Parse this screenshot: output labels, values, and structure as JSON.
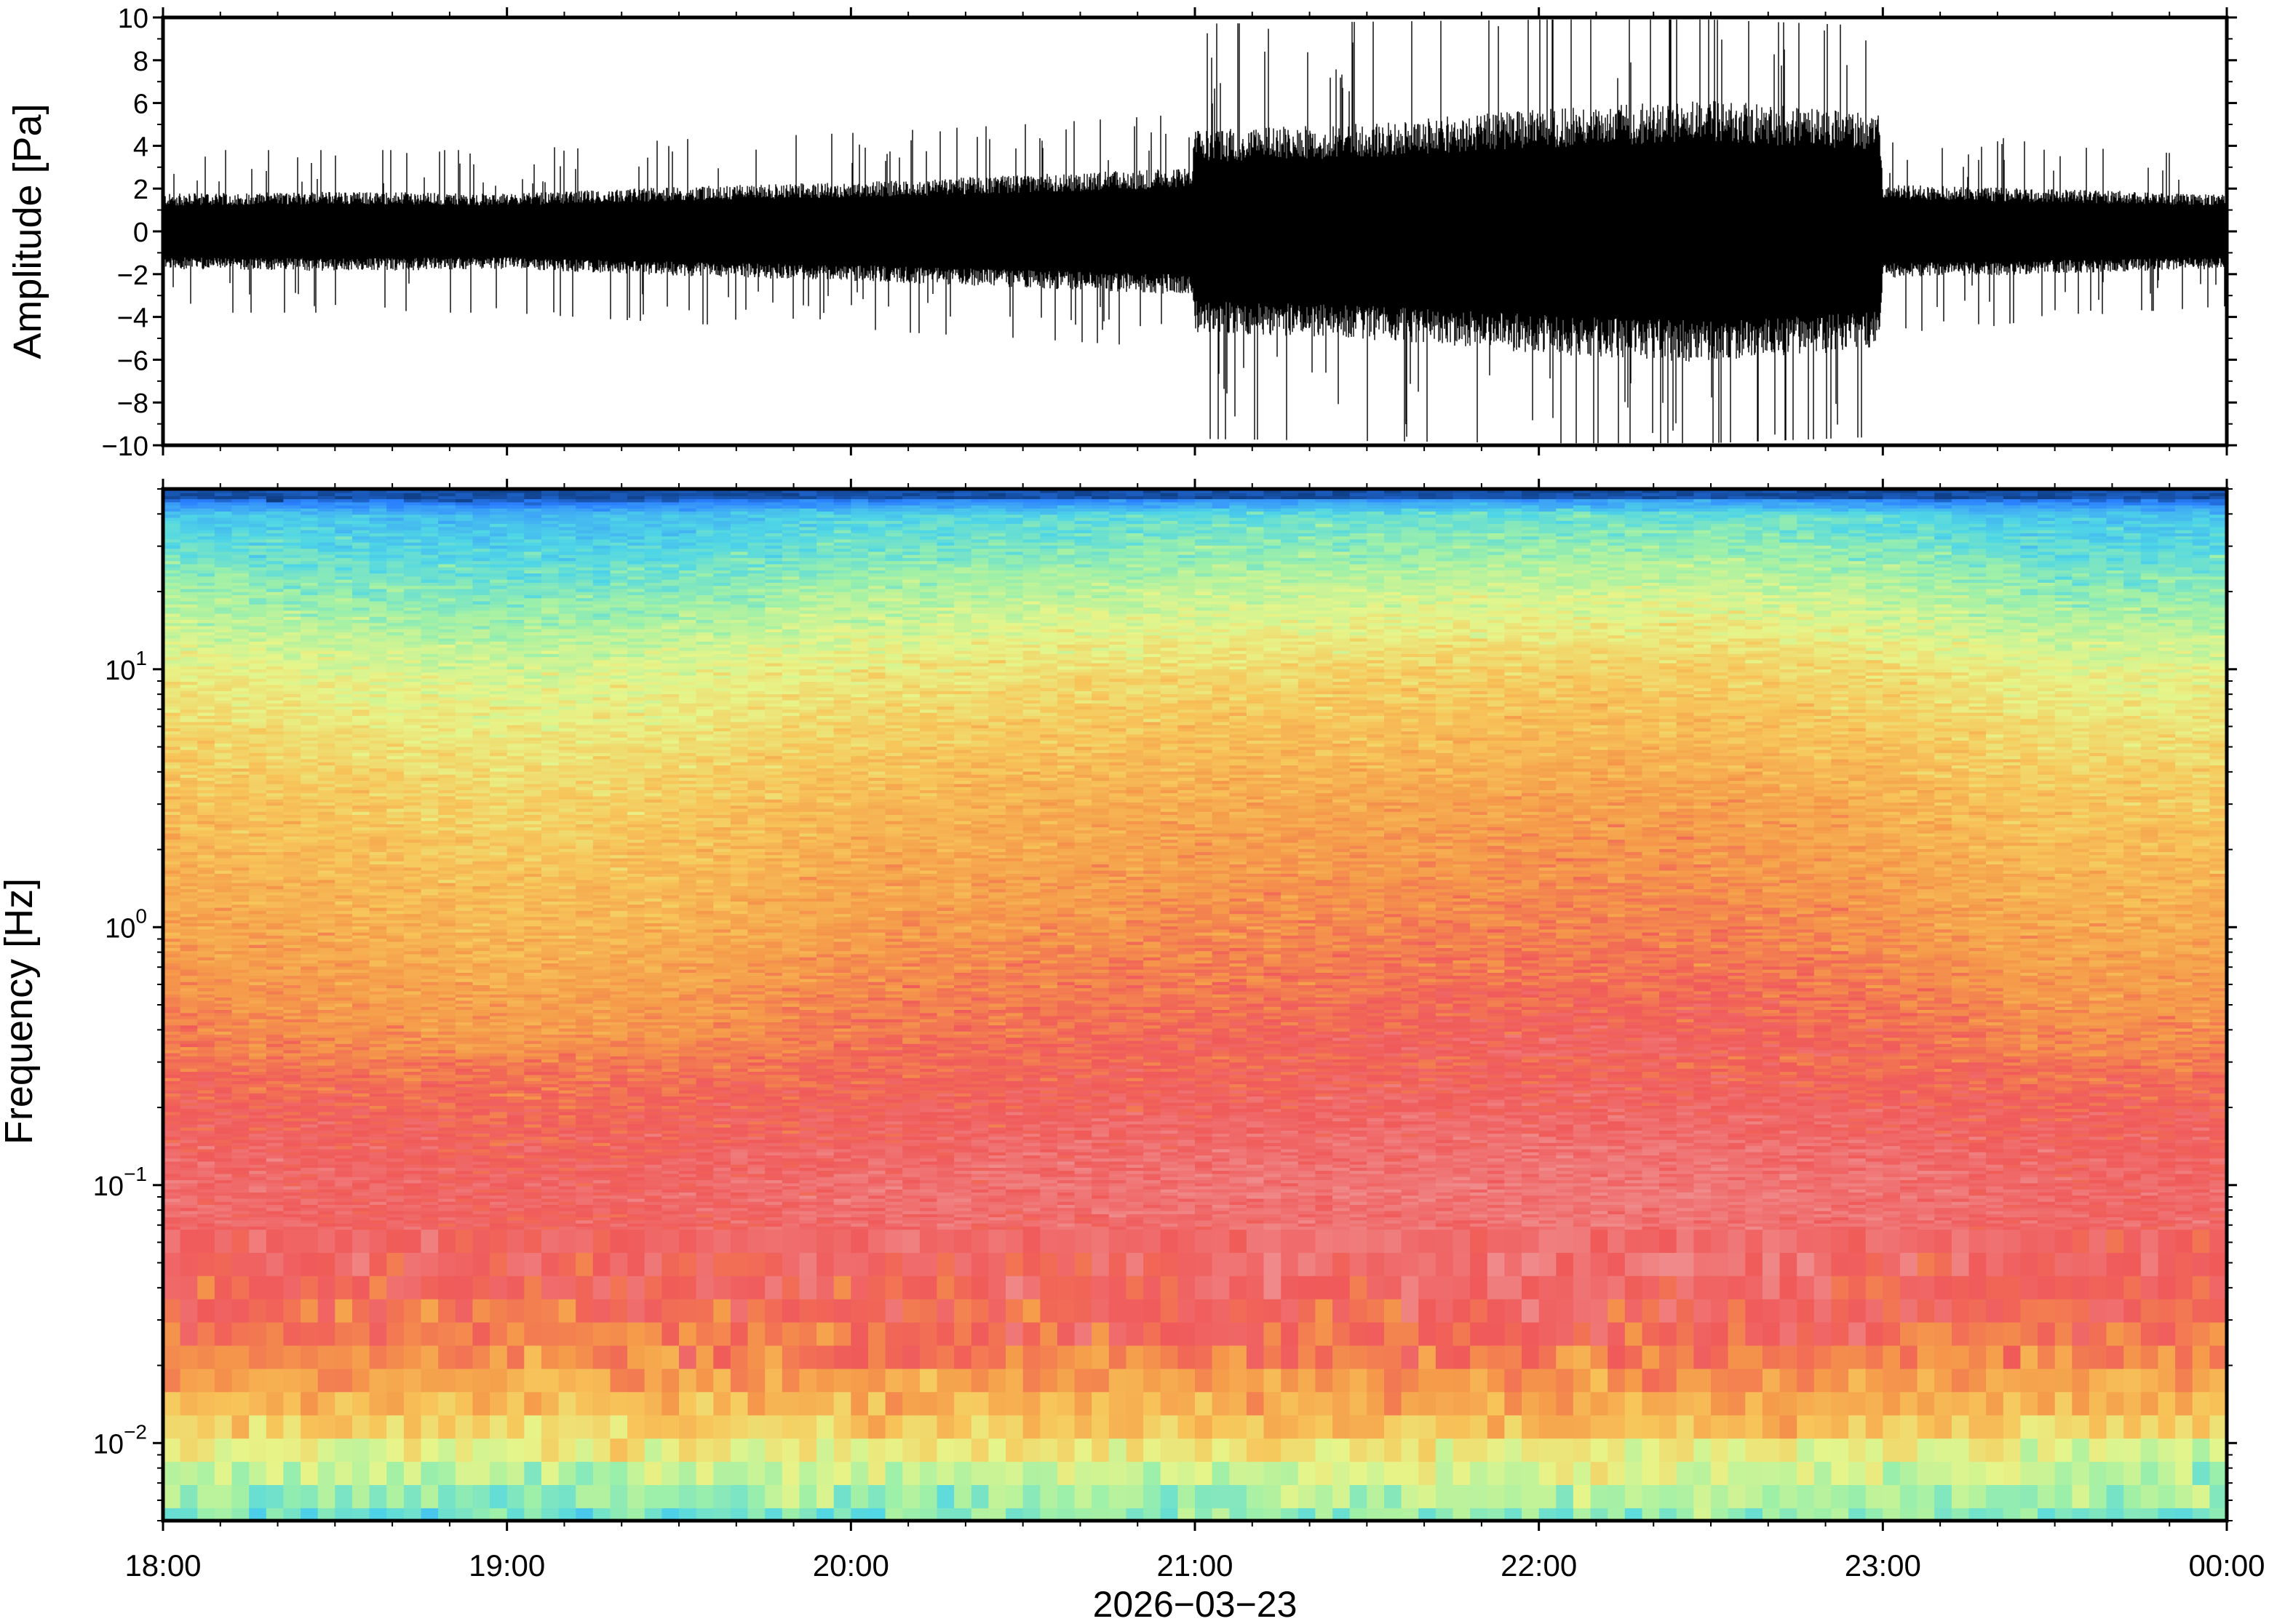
{
  "chart_data": [
    {
      "type": "line",
      "ylabel": "Amplitude [Pa]",
      "ylim": [
        -10,
        10
      ],
      "yticks": [
        "10",
        "8",
        "6",
        "4",
        "2",
        "0",
        "−2",
        "−4",
        "−6",
        "−8",
        "−10"
      ],
      "xlim": [
        "18:00",
        "00:00"
      ],
      "series": [
        {
          "x_hours": [
            18.0,
            18.5,
            19.0,
            19.5,
            20.0,
            20.5,
            20.99,
            21.0,
            21.5,
            22.0,
            22.5,
            22.99,
            23.0,
            23.5,
            24.0
          ],
          "envelope_pa": [
            1.6,
            1.7,
            1.6,
            1.9,
            2.1,
            2.4,
            2.7,
            4.3,
            4.6,
            5.2,
            5.6,
            5.0,
            2.0,
            1.8,
            1.6
          ],
          "peak_pa": [
            3.8,
            3.8,
            3.8,
            4.3,
            4.6,
            5.0,
            5.5,
            9.7,
            9.8,
            9.9,
            9.9,
            9.6,
            5.2,
            4.0,
            3.5
          ],
          "color": "#000000"
        }
      ],
      "grid": false
    },
    {
      "type": "heatmap",
      "ylabel": "Frequency [Hz]",
      "yscale": "log",
      "ylim": [
        0.005,
        50
      ],
      "yticks": [
        {
          "value": 0.01,
          "base": "10",
          "exp": "−2"
        },
        {
          "value": 0.1,
          "base": "10",
          "exp": "−1"
        },
        {
          "value": 1,
          "base": "10",
          "exp": "0"
        },
        {
          "value": 10,
          "base": "10",
          "exp": "1"
        }
      ],
      "xlim": [
        "18:00",
        "00:00"
      ],
      "colormap": [
        "#08306b",
        "#2a7fff",
        "#3fa9f5",
        "#4fd6e6",
        "#9ef0a8",
        "#e6f58a",
        "#f7c65a",
        "#f59a4a",
        "#f05a5a",
        "#f08a8a"
      ],
      "intensity_profile": {
        "log_freq": [
          -2.3,
          -2.1,
          -1.9,
          -1.6,
          -1.3,
          -1.0,
          -0.7,
          -0.4,
          0.0,
          0.5,
          1.0,
          1.3,
          1.6,
          1.68
        ],
        "level": [
          3.6,
          4.6,
          6.2,
          7.6,
          8.2,
          8.4,
          8.0,
          7.4,
          6.8,
          6.2,
          5.2,
          4.1,
          2.8,
          0.3
        ]
      },
      "time_variation": {
        "x_hours": [
          18.0,
          19.0,
          19.5,
          20.0,
          21.0,
          22.0,
          22.5,
          23.0,
          23.5,
          24.0
        ],
        "boost": [
          0.0,
          -0.5,
          -0.3,
          0.1,
          0.4,
          0.6,
          0.6,
          0.3,
          -0.2,
          -0.2
        ]
      }
    }
  ],
  "x_axis": {
    "ticks": [
      "18:00",
      "19:00",
      "20:00",
      "21:00",
      "22:00",
      "23:00",
      "00:00"
    ],
    "label": "2026−03−23"
  }
}
